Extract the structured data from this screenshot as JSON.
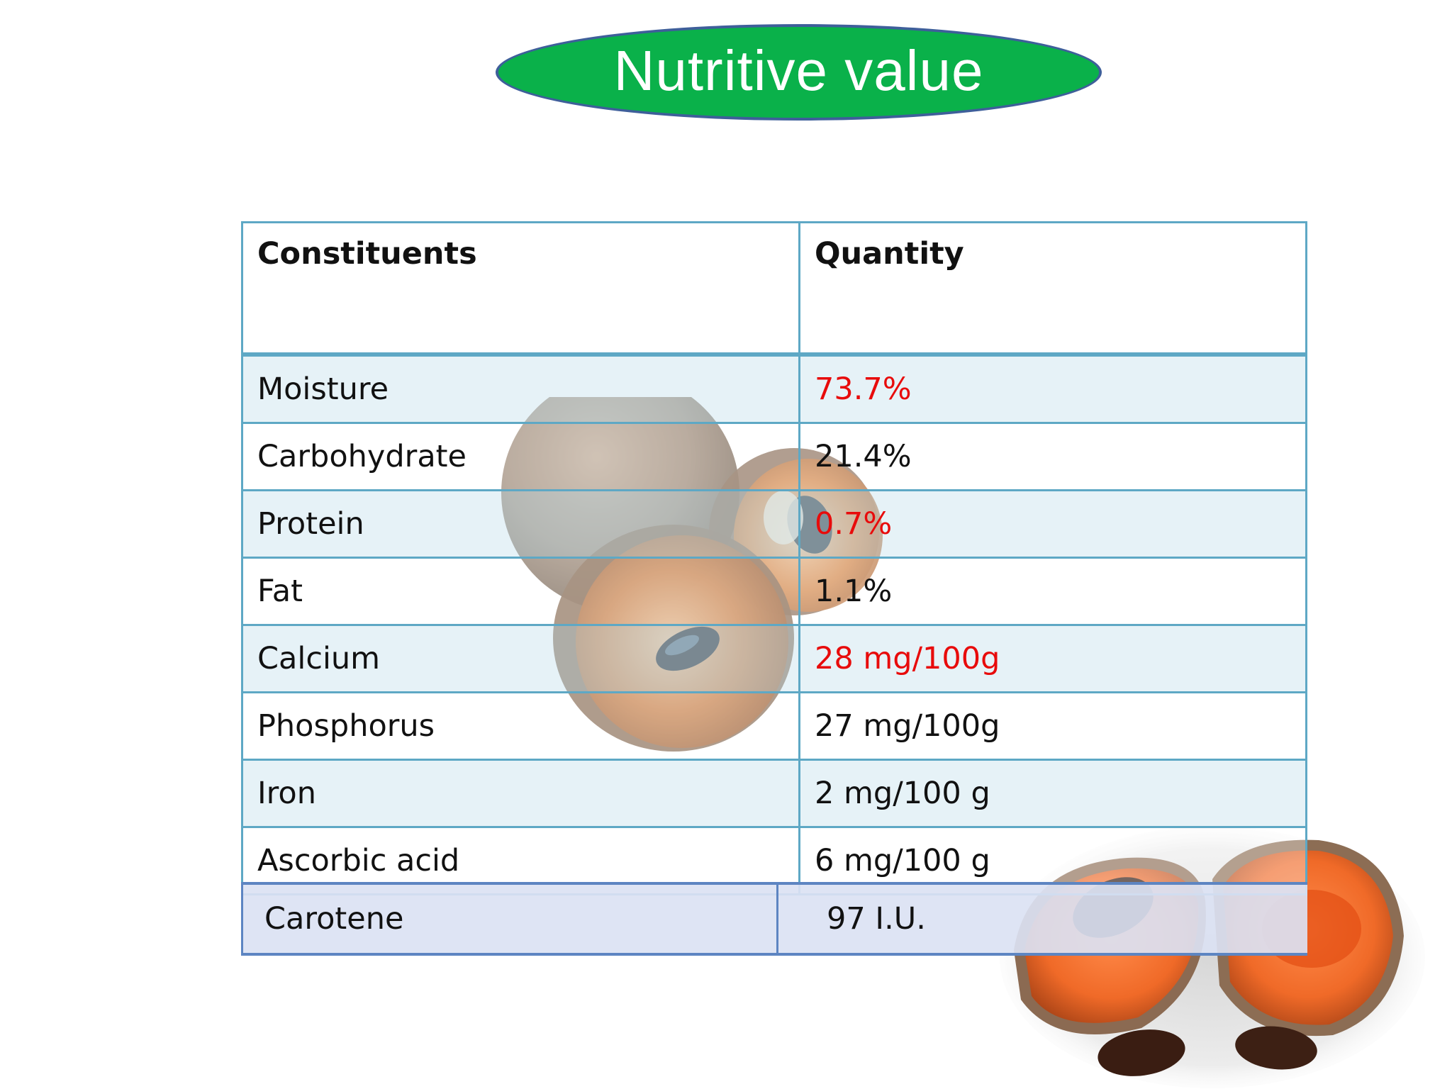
{
  "slide": {
    "title": "Nutritive value"
  },
  "table": {
    "headers": [
      "Constituents",
      "Quantity"
    ],
    "rows": [
      {
        "constituent": "Moisture",
        "quantity": "73.7%",
        "highlight": true
      },
      {
        "constituent": "Carbohydrate",
        "quantity": "21.4%",
        "highlight": false
      },
      {
        "constituent": "Protein",
        "quantity": "0.7%",
        "highlight": true
      },
      {
        "constituent": "Fat",
        "quantity": "1.1%",
        "highlight": false
      },
      {
        "constituent": "Calcium",
        "quantity": "28 mg/100g",
        "highlight": true
      },
      {
        "constituent": "Phosphorus",
        "quantity": "27 mg/100g",
        "highlight": false
      },
      {
        "constituent": "Iron",
        "quantity": "2 mg/100 g",
        "highlight": false
      },
      {
        "constituent": "Ascorbic acid",
        "quantity": "6 mg/100 g",
        "highlight": false
      }
    ],
    "extra_row": {
      "constituent": "Carotene",
      "quantity": "97 I.U."
    }
  },
  "colors": {
    "title_fill": "#0ab14a",
    "title_border": "#3e5f9a",
    "table_border": "#5ea8c5",
    "highlight_text": "#e80b0b"
  },
  "images": {
    "top": "sapota-fruit-whole-and-halved",
    "bottom": "sapota-fruit-cut-with-seeds"
  }
}
